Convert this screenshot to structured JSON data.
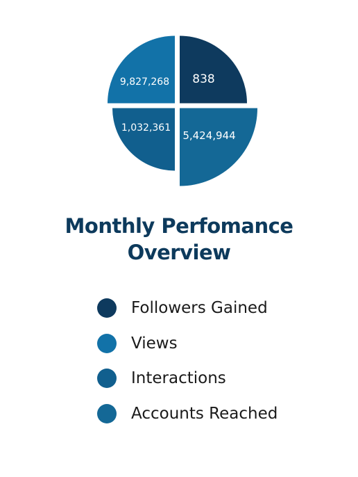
{
  "colors": {
    "title": "#0d3a5c",
    "legend_text": "#1a1a1a"
  },
  "title_lines": [
    "Monthly Perfomance",
    "Overview"
  ],
  "chart_data": {
    "type": "pie",
    "title": "Monthly Perfomance Overview",
    "slices": [
      {
        "name": "Followers Gained",
        "value": 838,
        "label": "838",
        "color": "#0e3a5e"
      },
      {
        "name": "Views",
        "value": 9827268,
        "label": "9,827,268",
        "color": "#1272a8"
      },
      {
        "name": "Interactions",
        "value": 1032361,
        "label": "1,032,361",
        "color": "#115f8e"
      },
      {
        "name": "Accounts Reached",
        "value": 5424944,
        "label": "5,424,944",
        "color": "#146896"
      }
    ],
    "legend_position": "bottom"
  }
}
